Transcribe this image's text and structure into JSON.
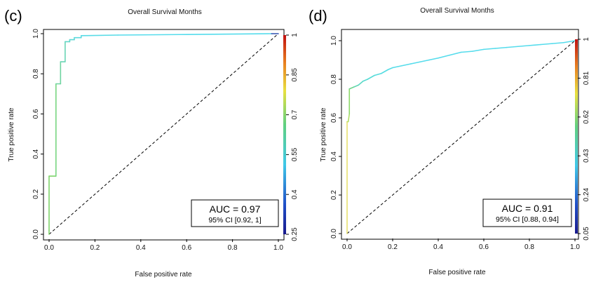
{
  "top_labels": [
    "Overall Survival Months",
    "Overall Survival Months"
  ],
  "chart_data": [
    {
      "type": "line",
      "panel_label": "(c)",
      "xlabel": "False positive rate",
      "ylabel": "True positive rate",
      "xlim": [
        0,
        1
      ],
      "ylim": [
        0,
        1
      ],
      "x_ticks": [
        "0.0",
        "0.2",
        "0.4",
        "0.6",
        "0.8",
        "1.0"
      ],
      "y_ticks": [
        "0.0",
        "0.2",
        "0.4",
        "0.6",
        "0.8",
        "1.0"
      ],
      "colorbar": {
        "label": "",
        "ticks": [
          "0.25",
          "0.4",
          "0.55",
          "0.7",
          "0.85",
          "1"
        ],
        "range": [
          0.25,
          1
        ]
      },
      "auc_text": "AUC = 0.97",
      "ci_text": "95% CI [0.92, 1]",
      "diagonal": true,
      "grid": false,
      "series": [
        {
          "x": [
            0.0,
            0.0,
            0.0,
            0.03,
            0.03,
            0.05,
            0.05,
            0.07,
            0.07,
            0.09,
            0.09,
            0.11,
            0.11,
            0.14,
            0.14,
            0.3,
            0.6,
            0.97,
            1.0
          ],
          "y": [
            0.0,
            0.02,
            0.29,
            0.29,
            0.75,
            0.75,
            0.86,
            0.86,
            0.96,
            0.96,
            0.97,
            0.97,
            0.98,
            0.98,
            0.99,
            0.993,
            0.996,
            1.0,
            1.0
          ],
          "color": [
            "#7fd36a",
            "#7fd36a",
            "#7fd36a",
            "#78d680",
            "#6fd4a0",
            "#6fd4a0",
            "#6ad5b5",
            "#6ad5b5",
            "#63d6c8",
            "#63d6c8",
            "#5fd8d4",
            "#5fd8d4",
            "#5cdade",
            "#5cdade",
            "#58dbe6",
            "#55dcec",
            "#55dcec",
            "#3150b0",
            "#2a3fa0"
          ]
        }
      ]
    },
    {
      "type": "line",
      "panel_label": "(d)",
      "xlabel": "False positive rate",
      "ylabel": "True positive rate",
      "xlim": [
        0,
        1
      ],
      "ylim": [
        0,
        1
      ],
      "x_ticks": [
        "0.0",
        "0.2",
        "0.4",
        "0.6",
        "0.8",
        "1.0"
      ],
      "y_ticks": [
        "0.0",
        "0.2",
        "0.4",
        "0.6",
        "0.8",
        "1.0"
      ],
      "colorbar": {
        "label": "",
        "ticks": [
          "0.05",
          "0.24",
          "0.43",
          "0.62",
          "0.81",
          "1"
        ],
        "range": [
          0.05,
          1
        ]
      },
      "auc_text": "AUC = 0.91",
      "ci_text": "95% CI [0.88, 0.94]",
      "diagonal": true,
      "grid": false,
      "series": [
        {
          "x": [
            0.0,
            0.0,
            0.005,
            0.01,
            0.01,
            0.03,
            0.05,
            0.07,
            0.09,
            0.12,
            0.15,
            0.18,
            0.2,
            0.24,
            0.28,
            0.32,
            0.36,
            0.4,
            0.45,
            0.5,
            0.55,
            0.6,
            0.65,
            0.7,
            0.75,
            0.8,
            0.85,
            0.9,
            0.95,
            1.0
          ],
          "y": [
            0.0,
            0.58,
            0.58,
            0.62,
            0.75,
            0.76,
            0.77,
            0.79,
            0.8,
            0.82,
            0.83,
            0.85,
            0.86,
            0.87,
            0.88,
            0.89,
            0.9,
            0.91,
            0.925,
            0.94,
            0.945,
            0.955,
            0.96,
            0.965,
            0.97,
            0.975,
            0.98,
            0.985,
            0.99,
            1.0
          ],
          "color": [
            "#e8e070",
            "#c8e060",
            "#b0de66",
            "#8ed86a",
            "#6fd48a",
            "#62d5b0",
            "#5cd8c4",
            "#58dad0",
            "#57dbd6",
            "#56dbdc",
            "#55dce2",
            "#55dce6",
            "#55dce8",
            "#55dcea",
            "#55dcec",
            "#55dcec",
            "#55dcec",
            "#55dcec",
            "#55dcec",
            "#55dcec",
            "#55dcec",
            "#55dcec",
            "#55dcec",
            "#55dcec",
            "#55dcec",
            "#55dcec",
            "#55dcec",
            "#55dcec",
            "#55dcec",
            "#55dcec"
          ]
        }
      ]
    }
  ]
}
